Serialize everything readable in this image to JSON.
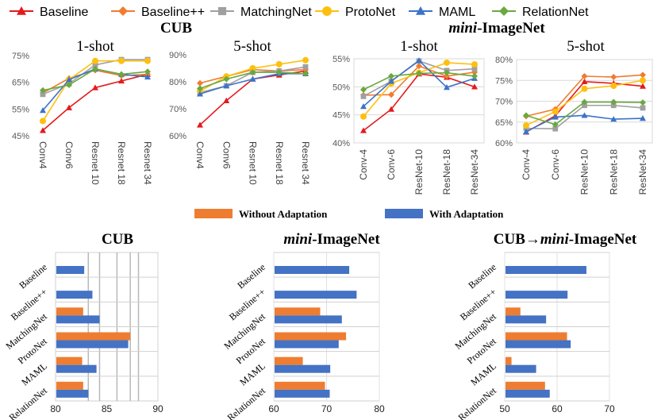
{
  "legend_top": [
    {
      "label": "Baseline",
      "color": "#e41a1c",
      "marker": "triangle"
    },
    {
      "label": "Baseline++",
      "color": "#f07c2f",
      "marker": "diamond"
    },
    {
      "label": "MatchingNet",
      "color": "#a0a0a0",
      "marker": "square"
    },
    {
      "label": "ProtoNet",
      "color": "#fdc010",
      "marker": "circle"
    },
    {
      "label": "MAML",
      "color": "#3c73c8",
      "marker": "triangle"
    },
    {
      "label": "RelationNet",
      "color": "#6aa840",
      "marker": "diamond"
    }
  ],
  "group_titles": {
    "cub": "CUB",
    "mini_italic": "mini",
    "mini_rest": "-ImageNet"
  },
  "legend_bottom": [
    {
      "label": "Without Adaptation",
      "color": "#ee7d31"
    },
    {
      "label": "With Adaptation",
      "color": "#4472c4"
    }
  ],
  "chart_data": [
    {
      "type": "line",
      "group": "CUB",
      "title": "1-shot",
      "categories": [
        "Conv4",
        "Conv6",
        "Resnet 10",
        "Resnet 18",
        "Resnet 34"
      ],
      "ylim": [
        45,
        75
      ],
      "yticks": [
        45,
        55,
        65,
        75
      ],
      "ytick_format": "percent",
      "grid": false,
      "series": [
        {
          "name": "Baseline",
          "values": [
            47,
            55.5,
            63,
            65.5,
            68
          ]
        },
        {
          "name": "Baseline++",
          "values": [
            61,
            66.5,
            69.5,
            67.5,
            68
          ]
        },
        {
          "name": "MatchingNet",
          "values": [
            60.5,
            64.5,
            71.5,
            73.5,
            73.5
          ]
        },
        {
          "name": "ProtoNet",
          "values": [
            50.5,
            66,
            73,
            73,
            73
          ]
        },
        {
          "name": "MAML",
          "values": [
            54.5,
            66,
            70,
            68,
            67
          ]
        },
        {
          "name": "RelationNet",
          "values": [
            62,
            64,
            70,
            68,
            69
          ]
        }
      ]
    },
    {
      "type": "line",
      "group": "CUB",
      "title": "5-shot",
      "categories": [
        "Conv4",
        "Conv6",
        "Resnet 10",
        "Resnet 18",
        "Resnet 34"
      ],
      "ylim": [
        60,
        90
      ],
      "yticks": [
        60,
        70,
        80,
        90
      ],
      "ytick_format": "percent",
      "grid": false,
      "series": [
        {
          "name": "Baseline",
          "values": [
            64,
            73,
            81,
            82.5,
            84
          ]
        },
        {
          "name": "Baseline++",
          "values": [
            79.5,
            82,
            84.5,
            84,
            84.5
          ]
        },
        {
          "name": "MatchingNet",
          "values": [
            76,
            78.5,
            83.5,
            84,
            85.5
          ]
        },
        {
          "name": "ProtoNet",
          "values": [
            76.5,
            82,
            85,
            86.5,
            88
          ]
        },
        {
          "name": "MAML",
          "values": [
            75.5,
            78.5,
            81,
            83,
            83
          ]
        },
        {
          "name": "RelationNet",
          "values": [
            77.5,
            81,
            83.5,
            83.5,
            83
          ]
        }
      ]
    },
    {
      "type": "line",
      "group": "mini-ImageNet",
      "title": "1-shot",
      "categories": [
        "Conv-4",
        "Conv-6",
        "ResNet-10",
        "ResNet-18",
        "ResNet-34"
      ],
      "ylim": [
        40,
        55
      ],
      "yticks": [
        40,
        45,
        50,
        55
      ],
      "ytick_format": "percent",
      "grid": true,
      "series": [
        {
          "name": "Baseline",
          "values": [
            42.2,
            46,
            52.3,
            51.7,
            50
          ]
        },
        {
          "name": "Baseline++",
          "values": [
            48.5,
            48.6,
            53.7,
            51.9,
            52.6
          ]
        },
        {
          "name": "MatchingNet",
          "values": [
            48.3,
            51,
            54.6,
            52.9,
            53.2
          ]
        },
        {
          "name": "ProtoNet",
          "values": [
            44.7,
            50.6,
            52.5,
            54.3,
            54
          ]
        },
        {
          "name": "MAML",
          "values": [
            46.5,
            51,
            54.7,
            49.9,
            51.5
          ]
        },
        {
          "name": "RelationNet",
          "values": [
            49.5,
            51.9,
            52.4,
            52.5,
            51.9
          ]
        }
      ]
    },
    {
      "type": "line",
      "group": "mini-ImageNet",
      "title": "5-shot",
      "categories": [
        "Conv-4",
        "Conv-6",
        "ResNet-10",
        "ResNet-18",
        "ResNet-34"
      ],
      "ylim": [
        60,
        80
      ],
      "yticks": [
        60,
        65,
        70,
        75,
        80
      ],
      "ytick_format": "percent",
      "grid": true,
      "series": [
        {
          "name": "Baseline",
          "values": [
            62.6,
            66.5,
            74.7,
            74.3,
            73.6
          ]
        },
        {
          "name": "Baseline++",
          "values": [
            66.4,
            68.1,
            76,
            75.8,
            76.3
          ]
        },
        {
          "name": "MatchingNet",
          "values": [
            63.5,
            63.4,
            69,
            69,
            68.4
          ]
        },
        {
          "name": "ProtoNet",
          "values": [
            64.2,
            67.5,
            73,
            73.7,
            75
          ]
        },
        {
          "name": "MAML",
          "values": [
            62.7,
            66.2,
            66.6,
            65.7,
            65.9
          ]
        },
        {
          "name": "RelationNet",
          "values": [
            66.6,
            64.4,
            69.8,
            69.8,
            69.7
          ]
        }
      ]
    },
    {
      "type": "bar",
      "orientation": "horizontal",
      "title_italic": "",
      "title_rest": "CUB",
      "categories": [
        "Baseline",
        "Baseline++",
        "MatchingNet",
        "ProtoNet",
        "MAML",
        "RelationNet"
      ],
      "xlim": [
        80,
        90
      ],
      "xticks": [
        80,
        85,
        90
      ],
      "series": [
        {
          "name": "Without Adaptation",
          "values": [
            null,
            null,
            82.7,
            87.3,
            82.6,
            82.7
          ]
        },
        {
          "name": "With Adaptation",
          "values": [
            82.8,
            83.6,
            84.3,
            87.1,
            84,
            83.2
          ]
        }
      ]
    },
    {
      "type": "bar",
      "orientation": "horizontal",
      "title_italic": "mini",
      "title_rest": "-ImageNet",
      "categories": [
        "Baseline",
        "Baseline++",
        "MatchingNet",
        "ProtoNet",
        "MAML",
        "RelationNet"
      ],
      "xlim": [
        60,
        80
      ],
      "xticks": [
        60,
        70,
        80
      ],
      "series": [
        {
          "name": "Without Adaptation",
          "values": [
            null,
            null,
            68.8,
            73.7,
            65.5,
            69.7
          ]
        },
        {
          "name": "With Adaptation",
          "values": [
            74.3,
            75.7,
            72.9,
            72.3,
            70.7,
            70.6
          ]
        }
      ]
    },
    {
      "type": "bar",
      "orientation": "horizontal",
      "title_italic": "mini",
      "title_rest": "-ImageNet",
      "title_prefix": "CUB→",
      "categories": [
        "Baseline",
        "Baseline++",
        "MatchingNet",
        "ProtoNet",
        "MAML",
        "RelationNet"
      ],
      "xlim": [
        50,
        70
      ],
      "xticks": [
        50,
        60,
        70
      ],
      "series": [
        {
          "name": "Without Adaptation",
          "values": [
            null,
            null,
            53,
            61.9,
            51.3,
            57.7
          ]
        },
        {
          "name": "With Adaptation",
          "values": [
            65.6,
            62,
            57.9,
            62.6,
            56,
            58.6
          ]
        }
      ]
    }
  ]
}
